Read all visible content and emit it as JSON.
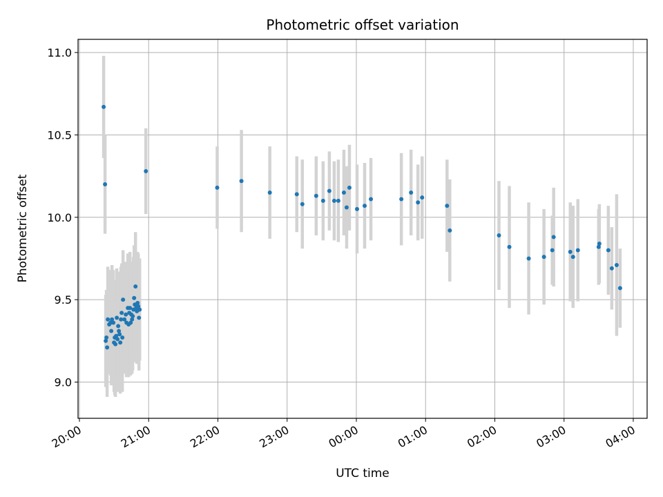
{
  "chart_data": {
    "type": "scatter",
    "title": "Photometric offset variation",
    "xlabel": "UTC time",
    "ylabel": "Photometric offset",
    "x_ticks": [
      "20:00",
      "21:00",
      "22:00",
      "23:00",
      "00:00",
      "01:00",
      "02:00",
      "03:00",
      "04:00"
    ],
    "y_ticks": [
      "9.0",
      "9.5",
      "10.0",
      "10.5",
      "11.0"
    ],
    "x_tick_hours": [
      0,
      1,
      2,
      3,
      4,
      5,
      6,
      7,
      8
    ],
    "y_tick_values": [
      9.0,
      9.5,
      10.0,
      10.5,
      11.0
    ],
    "xlim_hours_since_2000": [
      -0.02,
      8.2
    ],
    "ylim": [
      8.78,
      11.08
    ],
    "grid": true,
    "colors": {
      "points": "#1f77b4",
      "error_bars": "#d3d3d3",
      "grid": "#b0b0b0"
    },
    "points": [
      {
        "t": 0.35,
        "y": 10.67,
        "err": 0.31
      },
      {
        "t": 0.37,
        "y": 10.2,
        "err": 0.3
      },
      {
        "t": 0.38,
        "y": 9.25,
        "err": 0.28
      },
      {
        "t": 0.39,
        "y": 9.27,
        "err": 0.29
      },
      {
        "t": 0.4,
        "y": 9.21,
        "err": 0.3
      },
      {
        "t": 0.41,
        "y": 9.38,
        "err": 0.32
      },
      {
        "t": 0.43,
        "y": 9.35,
        "err": 0.3
      },
      {
        "t": 0.45,
        "y": 9.36,
        "err": 0.32
      },
      {
        "t": 0.46,
        "y": 9.31,
        "err": 0.33
      },
      {
        "t": 0.47,
        "y": 9.38,
        "err": 0.33
      },
      {
        "t": 0.49,
        "y": 9.36,
        "err": 0.32
      },
      {
        "t": 0.5,
        "y": 9.24,
        "err": 0.3
      },
      {
        "t": 0.51,
        "y": 9.27,
        "err": 0.35
      },
      {
        "t": 0.52,
        "y": 9.23,
        "err": 0.32
      },
      {
        "t": 0.53,
        "y": 9.28,
        "err": 0.33
      },
      {
        "t": 0.54,
        "y": 9.39,
        "err": 0.3
      },
      {
        "t": 0.55,
        "y": 9.26,
        "err": 0.32
      },
      {
        "t": 0.56,
        "y": 9.34,
        "err": 0.33
      },
      {
        "t": 0.57,
        "y": 9.31,
        "err": 0.34
      },
      {
        "t": 0.58,
        "y": 9.29,
        "err": 0.3
      },
      {
        "t": 0.59,
        "y": 9.24,
        "err": 0.31
      },
      {
        "t": 0.6,
        "y": 9.38,
        "err": 0.32
      },
      {
        "t": 0.61,
        "y": 9.42,
        "err": 0.3
      },
      {
        "t": 0.62,
        "y": 9.27,
        "err": 0.33
      },
      {
        "t": 0.63,
        "y": 9.5,
        "err": 0.3
      },
      {
        "t": 0.65,
        "y": 9.38,
        "err": 0.33
      },
      {
        "t": 0.67,
        "y": 9.41,
        "err": 0.32
      },
      {
        "t": 0.68,
        "y": 9.36,
        "err": 0.33
      },
      {
        "t": 0.7,
        "y": 9.45,
        "err": 0.33
      },
      {
        "t": 0.71,
        "y": 9.35,
        "err": 0.32
      },
      {
        "t": 0.72,
        "y": 9.42,
        "err": 0.3
      },
      {
        "t": 0.73,
        "y": 9.45,
        "err": 0.34
      },
      {
        "t": 0.74,
        "y": 9.36,
        "err": 0.32
      },
      {
        "t": 0.75,
        "y": 9.41,
        "err": 0.31
      },
      {
        "t": 0.76,
        "y": 9.38,
        "err": 0.33
      },
      {
        "t": 0.77,
        "y": 9.4,
        "err": 0.33
      },
      {
        "t": 0.78,
        "y": 9.44,
        "err": 0.32
      },
      {
        "t": 0.79,
        "y": 9.51,
        "err": 0.32
      },
      {
        "t": 0.8,
        "y": 9.47,
        "err": 0.33
      },
      {
        "t": 0.81,
        "y": 9.58,
        "err": 0.33
      },
      {
        "t": 0.82,
        "y": 9.45,
        "err": 0.33
      },
      {
        "t": 0.83,
        "y": 9.43,
        "err": 0.32
      },
      {
        "t": 0.84,
        "y": 9.48,
        "err": 0.31
      },
      {
        "t": 0.85,
        "y": 9.46,
        "err": 0.32
      },
      {
        "t": 0.86,
        "y": 9.39,
        "err": 0.32
      },
      {
        "t": 0.87,
        "y": 9.44,
        "err": 0.31
      },
      {
        "t": 0.96,
        "y": 10.28,
        "err": 0.26
      },
      {
        "t": 1.99,
        "y": 10.18,
        "err": 0.25
      },
      {
        "t": 2.34,
        "y": 10.22,
        "err": 0.31
      },
      {
        "t": 2.75,
        "y": 10.15,
        "err": 0.28
      },
      {
        "t": 3.14,
        "y": 10.14,
        "err": 0.23
      },
      {
        "t": 3.22,
        "y": 10.08,
        "err": 0.27
      },
      {
        "t": 3.42,
        "y": 10.13,
        "err": 0.24
      },
      {
        "t": 3.52,
        "y": 10.1,
        "err": 0.24
      },
      {
        "t": 3.61,
        "y": 10.16,
        "err": 0.24
      },
      {
        "t": 3.68,
        "y": 10.1,
        "err": 0.24
      },
      {
        "t": 3.74,
        "y": 10.1,
        "err": 0.25
      },
      {
        "t": 3.82,
        "y": 10.15,
        "err": 0.26
      },
      {
        "t": 3.86,
        "y": 10.06,
        "err": 0.25
      },
      {
        "t": 3.9,
        "y": 10.18,
        "err": 0.26
      },
      {
        "t": 4.01,
        "y": 10.05,
        "err": 0.27
      },
      {
        "t": 4.12,
        "y": 10.07,
        "err": 0.26
      },
      {
        "t": 4.21,
        "y": 10.11,
        "err": 0.25
      },
      {
        "t": 4.65,
        "y": 10.11,
        "err": 0.28
      },
      {
        "t": 4.79,
        "y": 10.15,
        "err": 0.26
      },
      {
        "t": 4.89,
        "y": 10.09,
        "err": 0.23
      },
      {
        "t": 4.95,
        "y": 10.12,
        "err": 0.25
      },
      {
        "t": 5.31,
        "y": 10.07,
        "err": 0.28
      },
      {
        "t": 5.35,
        "y": 9.92,
        "err": 0.31
      },
      {
        "t": 6.06,
        "y": 9.89,
        "err": 0.33
      },
      {
        "t": 6.21,
        "y": 9.82,
        "err": 0.37
      },
      {
        "t": 6.49,
        "y": 9.75,
        "err": 0.34
      },
      {
        "t": 6.71,
        "y": 9.76,
        "err": 0.29
      },
      {
        "t": 6.83,
        "y": 9.8,
        "err": 0.21
      },
      {
        "t": 6.85,
        "y": 9.88,
        "err": 0.3
      },
      {
        "t": 7.09,
        "y": 9.79,
        "err": 0.3
      },
      {
        "t": 7.13,
        "y": 9.76,
        "err": 0.31
      },
      {
        "t": 7.2,
        "y": 9.8,
        "err": 0.31
      },
      {
        "t": 7.5,
        "y": 9.82,
        "err": 0.23
      },
      {
        "t": 7.51,
        "y": 9.84,
        "err": 0.24
      },
      {
        "t": 7.64,
        "y": 9.8,
        "err": 0.27
      },
      {
        "t": 7.69,
        "y": 9.69,
        "err": 0.25
      },
      {
        "t": 7.76,
        "y": 9.71,
        "err": 0.43
      },
      {
        "t": 7.81,
        "y": 9.57,
        "err": 0.24
      }
    ]
  }
}
